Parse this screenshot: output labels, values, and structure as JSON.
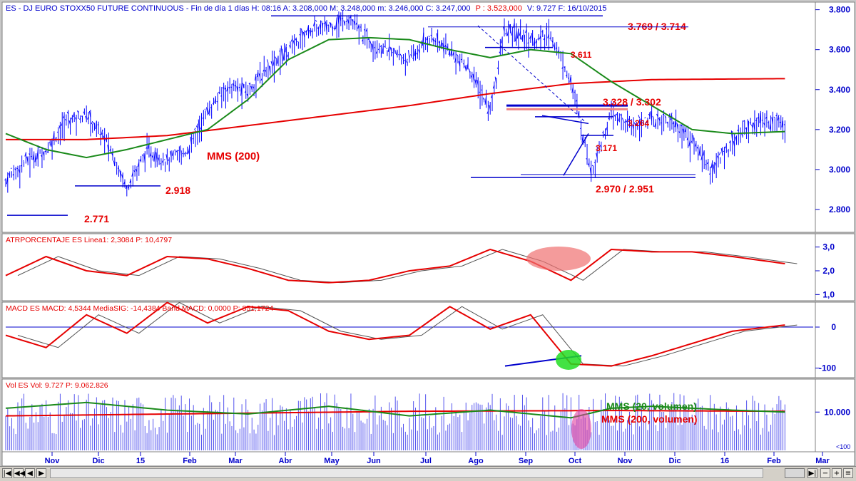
{
  "colors": {
    "background": "#ffffff",
    "axis_text": "#0000cc",
    "price": "#0000ff",
    "sma_fast": "#1a8a1a",
    "sma_slow": "#e60000",
    "annotation": "#e60000",
    "level_line": "#0000cc",
    "green_text": "#1a8a1a"
  },
  "header": {
    "title": "ES - DJ EURO STOXX50 FUTURE CONTINUOUS - Fin de día 1 días H: 08:16 A: 3.208,000 M: 3.248,000 m: 3.246,000 C: 3.247,000",
    "p_value": "P : 3.523,000",
    "tail": "V: 9.727  F: 16/10/2015"
  },
  "x_axis": {
    "labels": [
      "Nov",
      "Dic",
      "15",
      "Feb",
      "Mar",
      "Abr",
      "May",
      "Jun",
      "Jul",
      "Ago",
      "Sep",
      "Oct",
      "Nov",
      "Dic",
      "16",
      "Feb",
      "Mar"
    ]
  },
  "chart_data": [
    {
      "type": "ohlc",
      "panel": "price",
      "ylim": [
        2700,
        3820
      ],
      "y_ticks": [
        "3.800",
        "3.600",
        "3.400",
        "3.200",
        "3.000",
        "2.800"
      ],
      "y_tick_values": [
        3800,
        3600,
        3400,
        3200,
        3000,
        2800
      ],
      "series": [
        {
          "name": "price",
          "x": [
            0,
            10,
            20,
            30,
            40,
            50,
            60,
            70,
            80,
            90,
            100,
            110,
            120,
            130,
            140,
            150,
            160,
            170,
            180,
            190,
            200,
            210,
            220,
            230,
            235,
            240,
            247,
            255,
            262,
            270,
            280,
            290,
            300,
            310,
            320,
            330,
            340,
            350,
            360,
            370,
            380,
            386
          ],
          "y": [
            2950,
            3050,
            3100,
            3250,
            3280,
            3150,
            2920,
            3100,
            3050,
            3100,
            3300,
            3420,
            3400,
            3520,
            3600,
            3700,
            3720,
            3760,
            3650,
            3600,
            3550,
            3670,
            3600,
            3500,
            3400,
            3300,
            3700,
            3680,
            3650,
            3680,
            3450,
            3000,
            3280,
            3220,
            3260,
            3250,
            3150,
            3000,
            3150,
            3240,
            3250,
            3247
          ]
        },
        {
          "name": "MMS (200)",
          "x": [
            0,
            40,
            80,
            120,
            160,
            200,
            240,
            280,
            320,
            386
          ],
          "y": [
            3150,
            3150,
            3170,
            3220,
            3270,
            3320,
            3380,
            3430,
            3450,
            3455
          ]
        },
        {
          "name": "sma-green",
          "x": [
            0,
            20,
            40,
            60,
            80,
            100,
            120,
            140,
            160,
            180,
            200,
            220,
            240,
            260,
            280,
            300,
            320,
            340,
            360,
            386
          ],
          "y": [
            3180,
            3100,
            3060,
            3100,
            3150,
            3200,
            3350,
            3550,
            3650,
            3660,
            3650,
            3600,
            3560,
            3600,
            3580,
            3440,
            3320,
            3200,
            3180,
            3190
          ]
        }
      ],
      "levels": [
        {
          "label": "3.769 / 3.714",
          "value": 3769
        },
        {
          "label": "3.611",
          "value": 3611
        },
        {
          "label": "3.328 / 3.302",
          "value": 3320
        },
        {
          "label": "3.264",
          "value": 3264
        },
        {
          "label": "3.171",
          "value": 3171
        },
        {
          "label": "2.970 / 2.951",
          "value": 2960
        },
        {
          "label": "2.918",
          "value": 2918
        },
        {
          "label": "2.771",
          "value": 2771
        }
      ],
      "annotations": [
        "MMS (200)"
      ]
    },
    {
      "type": "line",
      "panel": "atr",
      "title": "ATRPORCENTAJE  ES Linea1: 2,3084  P: 10,4797",
      "ylim": [
        0.8,
        3.2
      ],
      "y_ticks": [
        "3,0",
        "2,0",
        "1,0"
      ],
      "y_tick_values": [
        3,
        2,
        1
      ],
      "x": [
        0,
        20,
        40,
        60,
        80,
        100,
        120,
        140,
        160,
        180,
        200,
        220,
        240,
        260,
        280,
        300,
        320,
        340,
        360,
        386
      ],
      "values": [
        1.8,
        2.6,
        2.0,
        1.8,
        2.6,
        2.5,
        2.1,
        1.6,
        1.5,
        1.6,
        2.0,
        2.2,
        2.9,
        2.4,
        1.6,
        2.9,
        2.8,
        2.8,
        2.6,
        2.3
      ]
    },
    {
      "type": "line",
      "panel": "macd",
      "title": "MACD  ES MACD: 4,5344  MediaSIG: -14,4384  Band  MACD: 0,0000  P: 851,1724",
      "ylim": [
        -120,
        40
      ],
      "y_ticks": [
        "0",
        "-100"
      ],
      "y_tick_values": [
        0,
        -100
      ],
      "x": [
        0,
        20,
        40,
        60,
        80,
        100,
        120,
        140,
        160,
        180,
        200,
        220,
        240,
        260,
        280,
        300,
        320,
        340,
        360,
        386
      ],
      "values": [
        -20,
        -50,
        30,
        -15,
        60,
        10,
        50,
        40,
        -10,
        -30,
        -20,
        50,
        -5,
        30,
        -90,
        -95,
        -70,
        -40,
        -10,
        5
      ]
    },
    {
      "type": "bar",
      "panel": "volume",
      "title": "Vol  ES Vol: 9.727  P: 9.062.826",
      "ylim": [
        0,
        16000
      ],
      "y_ticks": [
        "10.000"
      ],
      "y_tick_values": [
        10000
      ],
      "series": [
        {
          "name": "MMS (20, volumen)",
          "x": [
            0,
            40,
            80,
            120,
            160,
            200,
            240,
            280,
            300,
            320,
            360,
            386
          ],
          "y": [
            11000,
            12500,
            10500,
            9500,
            11500,
            9000,
            10500,
            8500,
            11000,
            11500,
            10500,
            10000
          ]
        },
        {
          "name": "MMS (200, volumen)",
          "x": [
            0,
            100,
            200,
            300,
            386
          ],
          "y": [
            9000,
            9600,
            10200,
            10400,
            10200
          ]
        }
      ],
      "corner_label": "<100"
    }
  ]
}
